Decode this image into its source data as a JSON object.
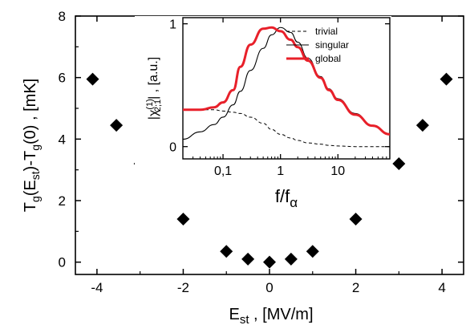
{
  "chart_data": [
    {
      "type": "scatter",
      "title": "",
      "xlabel": "E_st , [MV/m]",
      "ylabel": "T_g(E_st)-T_g(0) , [mK]",
      "xlim": [
        -4.5,
        4.5
      ],
      "ylim": [
        -0.4,
        8
      ],
      "xticks": [
        "-4",
        "-2",
        "0",
        "2",
        "4"
      ],
      "yticks": [
        "0",
        "2",
        "4",
        "6",
        "8"
      ],
      "marker": "diamond",
      "marker_color": "#000000",
      "x": [
        -4.1,
        -3.55,
        -3.0,
        -2.0,
        -1.0,
        -0.5,
        0.0,
        0.5,
        1.0,
        2.0,
        3.0,
        3.55,
        4.1
      ],
      "y": [
        5.95,
        4.45,
        3.2,
        1.4,
        0.35,
        0.1,
        0.0,
        0.1,
        0.35,
        1.4,
        3.2,
        4.45,
        5.95
      ]
    },
    {
      "type": "line",
      "title": "",
      "xlabel": "f/f_α",
      "ylabel": "|χ(1)2;1| , [a.u.]",
      "xscale": "log",
      "xlim": [
        0.02,
        80
      ],
      "ylim": [
        -0.1,
        1.05
      ],
      "xticks": [
        "0,1",
        "1",
        "10"
      ],
      "yticks": [
        "0",
        "1"
      ],
      "legend_position": "top-right",
      "x": [
        0.02,
        0.04,
        0.07,
        0.1,
        0.15,
        0.2,
        0.3,
        0.5,
        0.7,
        1.0,
        1.5,
        2.0,
        3.0,
        5.0,
        7.0,
        10,
        20,
        40,
        80
      ],
      "series": [
        {
          "name": "trivial",
          "color": "#000000",
          "style": "dashed",
          "values": [
            0.3,
            0.3,
            0.3,
            0.29,
            0.28,
            0.27,
            0.24,
            0.19,
            0.14,
            0.1,
            0.07,
            0.05,
            0.03,
            0.02,
            0.01,
            0.005,
            0.0,
            0.0,
            0.0
          ]
        },
        {
          "name": "singular",
          "color": "#000000",
          "style": "solid",
          "values": [
            0.06,
            0.12,
            0.18,
            0.24,
            0.34,
            0.45,
            0.62,
            0.8,
            0.91,
            0.97,
            0.93,
            0.85,
            0.72,
            0.57,
            0.47,
            0.39,
            0.27,
            0.17,
            0.1
          ]
        },
        {
          "name": "global",
          "color": "#e8202a",
          "style": "solid",
          "values": [
            0.3,
            0.3,
            0.32,
            0.36,
            0.46,
            0.65,
            0.83,
            0.96,
            0.97,
            0.94,
            0.87,
            0.81,
            0.7,
            0.56,
            0.46,
            0.38,
            0.26,
            0.17,
            0.1
          ]
        }
      ]
    }
  ]
}
